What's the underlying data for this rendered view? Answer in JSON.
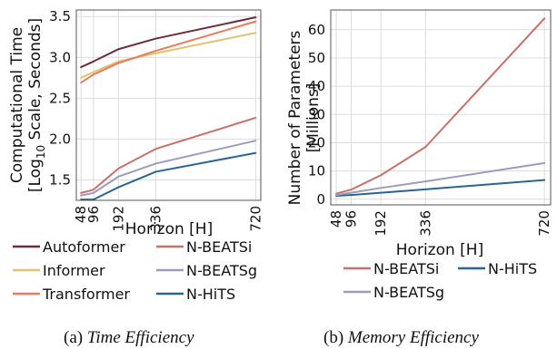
{
  "chart_data": [
    {
      "type": "line",
      "panel": "a",
      "caption_prefix": "(a)",
      "caption_text": "Time Efficiency",
      "xlabel": "Horizon [H]",
      "ylabel_line1": "Computational Time",
      "ylabel_line2_pre": "[Log",
      "ylabel_line2_sub": "10",
      "ylabel_line2_post": " Scale, Seconds]",
      "x": [
        48,
        96,
        192,
        336,
        720
      ],
      "xlim": [
        30,
        740
      ],
      "ylim": [
        1.25,
        3.58
      ],
      "yticks": [
        "1.5",
        "2.0",
        "2.5",
        "3.0",
        "3.5"
      ],
      "ytick_values": [
        1.5,
        2.0,
        2.5,
        3.0,
        3.5
      ],
      "xticks": [
        "48",
        "96",
        "192",
        "336",
        "720"
      ],
      "grid": true,
      "legend_position": "bottom",
      "series": [
        {
          "name": "Autoformer",
          "color": "#6b2d3e",
          "values": [
            2.88,
            2.95,
            3.1,
            3.23,
            3.49
          ]
        },
        {
          "name": "N-BEATSi",
          "color": "#c9706a",
          "values": [
            1.34,
            1.38,
            1.64,
            1.88,
            2.26
          ]
        },
        {
          "name": "Informer",
          "color": "#e2c36a",
          "values": [
            2.75,
            2.82,
            2.95,
            3.05,
            3.3
          ]
        },
        {
          "name": "N-BEATSg",
          "color": "#9d9cba",
          "values": [
            1.31,
            1.34,
            1.54,
            1.7,
            1.98
          ]
        },
        {
          "name": "Transformer",
          "color": "#ea7a5c",
          "values": [
            2.69,
            2.79,
            2.93,
            3.08,
            3.44
          ]
        },
        {
          "name": "N-HiTS",
          "color": "#2a6592",
          "values": [
            1.26,
            1.26,
            1.41,
            1.6,
            1.83
          ]
        }
      ]
    },
    {
      "type": "line",
      "panel": "b",
      "caption_prefix": "(b)",
      "caption_text": "Memory Efficiency",
      "xlabel": "Horizon [H]",
      "ylabel_line1": "Number of Parameters",
      "ylabel_line2": "[Millions]",
      "x": [
        48,
        96,
        192,
        336,
        720
      ],
      "xlim": [
        30,
        740
      ],
      "ylim": [
        -2,
        67
      ],
      "yticks": [
        "0",
        "10",
        "20",
        "30",
        "40",
        "50",
        "60"
      ],
      "ytick_values": [
        0,
        10,
        20,
        30,
        40,
        50,
        60
      ],
      "xticks": [
        "48",
        "96",
        "192",
        "336",
        "720"
      ],
      "grid": true,
      "legend_position": "bottom",
      "series": [
        {
          "name": "N-BEATSi",
          "color": "#c9706a",
          "values": [
            2.0,
            3.4,
            8.5,
            18.5,
            64.0
          ]
        },
        {
          "name": "N-HiTS",
          "color": "#2a6592",
          "values": [
            1.2,
            1.5,
            2.3,
            3.5,
            6.8
          ]
        },
        {
          "name": "N-BEATSg",
          "color": "#9d9cba",
          "values": [
            1.5,
            2.3,
            4.0,
            6.3,
            12.8
          ]
        }
      ]
    }
  ]
}
